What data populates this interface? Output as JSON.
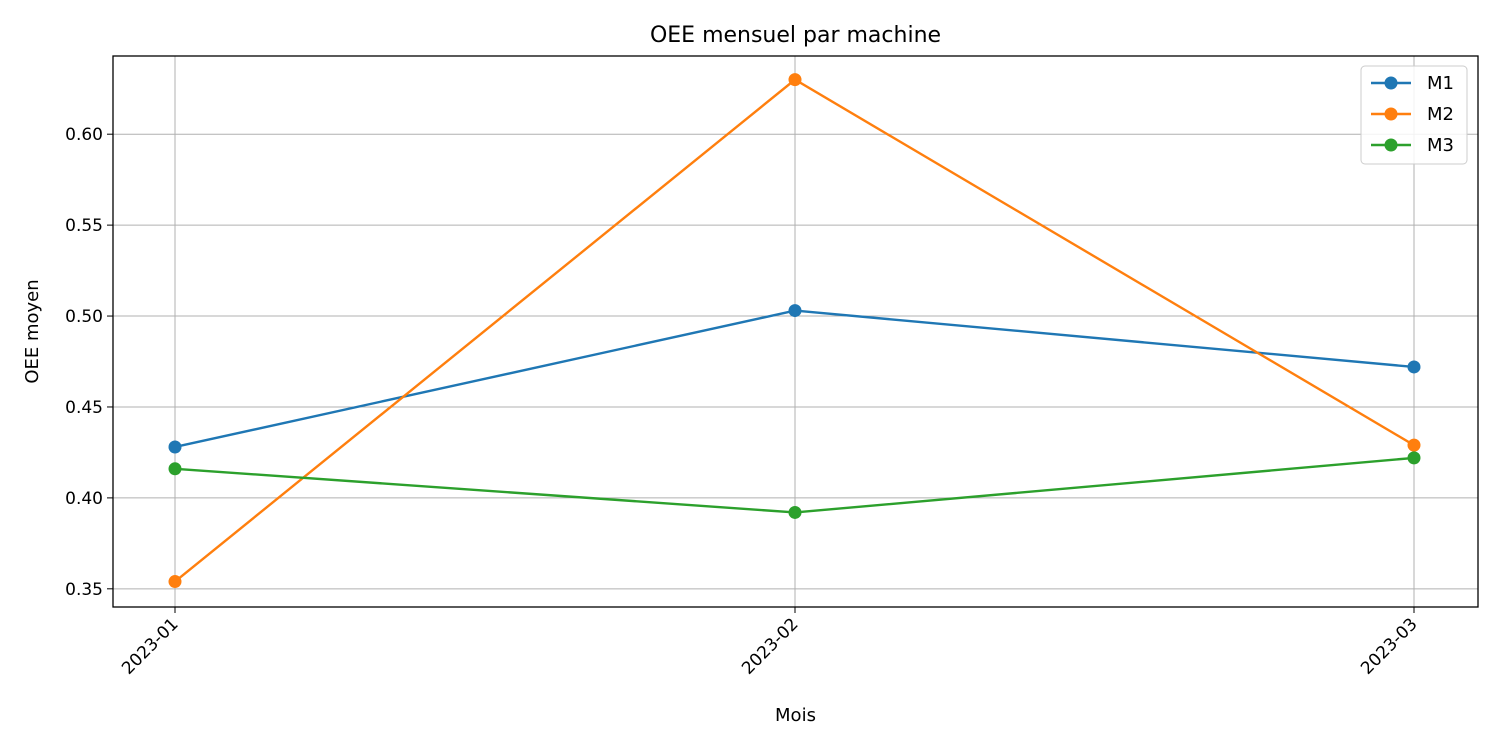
{
  "chart_data": {
    "type": "line",
    "title": "OEE mensuel par machine",
    "xlabel": "Mois",
    "ylabel": "OEE moyen",
    "categories": [
      "2023-01",
      "2023-02",
      "2023-03"
    ],
    "ylim": [
      0.34,
      0.643
    ],
    "yticks": [
      0.35,
      0.4,
      0.45,
      0.5,
      0.55,
      0.6
    ],
    "ytick_labels": [
      "0.35",
      "0.40",
      "0.45",
      "0.50",
      "0.55",
      "0.60"
    ],
    "grid": true,
    "legend_position": "top-right",
    "x_tick_rotation_deg": 45,
    "series": [
      {
        "name": "M1",
        "color": "#1f77b4",
        "marker": "circle",
        "values": [
          0.428,
          0.503,
          0.472
        ]
      },
      {
        "name": "M2",
        "color": "#ff7f0e",
        "marker": "circle",
        "values": [
          0.354,
          0.63,
          0.429
        ]
      },
      {
        "name": "M3",
        "color": "#2ca02c",
        "marker": "circle",
        "values": [
          0.416,
          0.392,
          0.422
        ]
      }
    ]
  }
}
